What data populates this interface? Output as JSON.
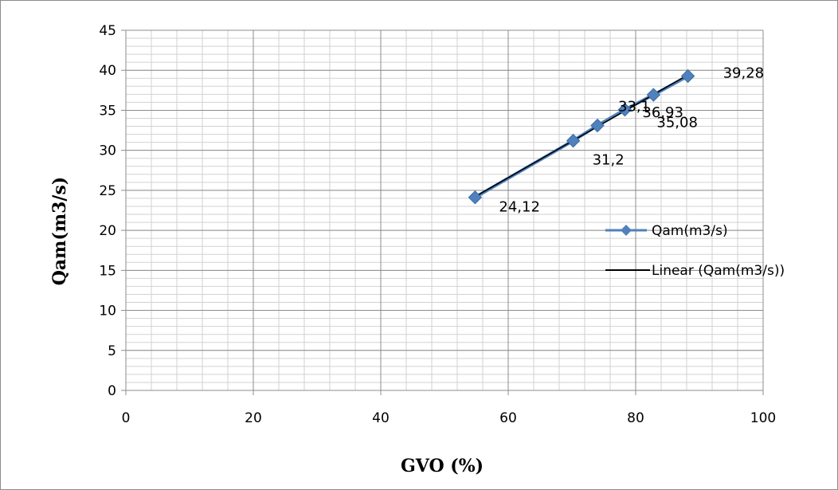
{
  "chart_data": {
    "type": "scatter",
    "title": "",
    "xlabel": "GVO (%)",
    "ylabel": "Qam(m3/s)",
    "xlim": [
      0,
      100
    ],
    "ylim": [
      0,
      45
    ],
    "x_ticks": [
      "0",
      "20",
      "40",
      "60",
      "80",
      "100"
    ],
    "y_ticks": [
      "0",
      "5",
      "10",
      "15",
      "20",
      "25",
      "30",
      "35",
      "40",
      "45"
    ],
    "x_minor_step": 4,
    "y_minor_step": 1,
    "grid": "major and minor",
    "legend_position": "right",
    "series": [
      {
        "name": "Qam(m3/s)",
        "color": "#4f81bd",
        "marker": "diamond",
        "x": [
          54.8,
          70.2,
          74.0,
          78.3,
          82.8,
          88.2
        ],
        "y": [
          24.12,
          31.2,
          33.1,
          35.08,
          36.93,
          39.28
        ],
        "labels": [
          "24,12",
          "31,2",
          "33,1",
          "35,08",
          "36,93",
          "39,28"
        ]
      }
    ],
    "trendline": {
      "name": "Linear (Qam(m3/s))",
      "type": "linear",
      "color": "#000000"
    }
  }
}
